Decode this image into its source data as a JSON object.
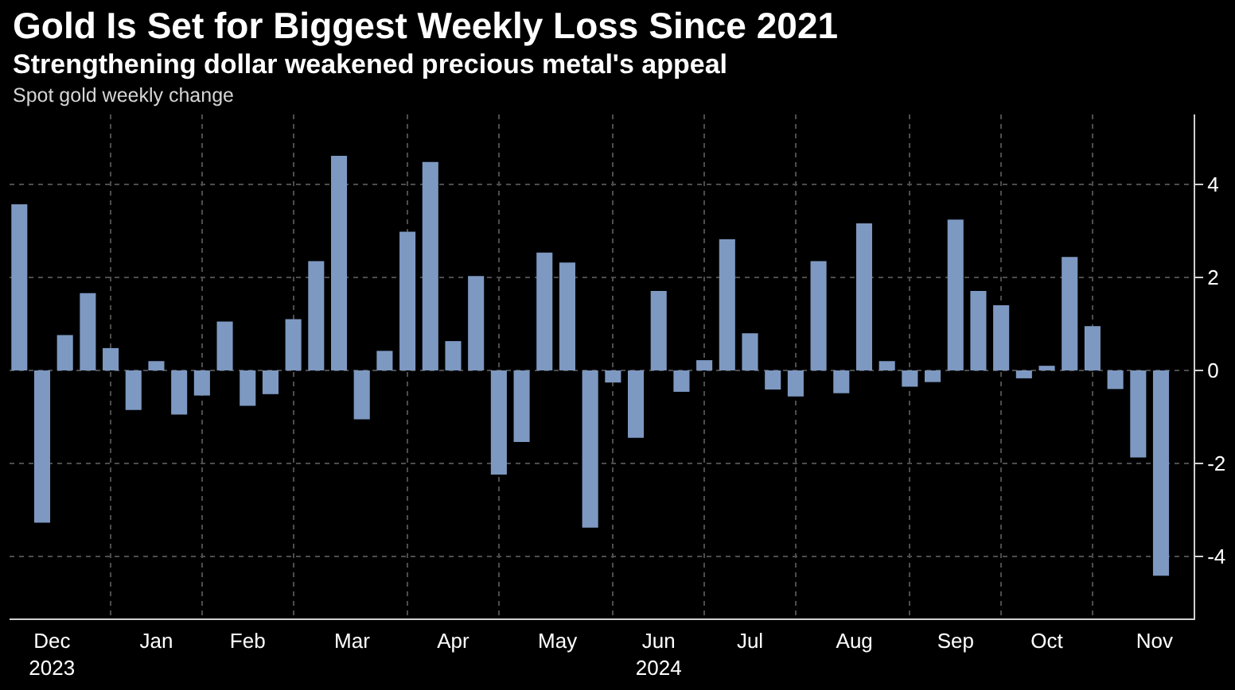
{
  "chart_data": {
    "type": "bar",
    "title": "Gold Is Set for Biggest Weekly Loss Since 2021",
    "subtitle": "Strengthening dollar weakened precious metal's appeal",
    "ylabel": "Spot gold weekly change",
    "x": [
      "2023-12-01",
      "2023-12-08",
      "2023-12-15",
      "2023-12-22",
      "2023-12-29",
      "2024-01-05",
      "2024-01-12",
      "2024-01-19",
      "2024-01-26",
      "2024-02-02",
      "2024-02-09",
      "2024-02-16",
      "2024-02-23",
      "2024-03-01",
      "2024-03-08",
      "2024-03-15",
      "2024-03-22",
      "2024-03-29",
      "2024-04-05",
      "2024-04-12",
      "2024-04-19",
      "2024-04-26",
      "2024-05-03",
      "2024-05-10",
      "2024-05-17",
      "2024-05-24",
      "2024-05-31",
      "2024-06-07",
      "2024-06-14",
      "2024-06-21",
      "2024-06-28",
      "2024-07-05",
      "2024-07-12",
      "2024-07-19",
      "2024-07-26",
      "2024-08-02",
      "2024-08-09",
      "2024-08-16",
      "2024-08-23",
      "2024-08-30",
      "2024-09-06",
      "2024-09-13",
      "2024-09-20",
      "2024-09-27",
      "2024-10-04",
      "2024-10-11",
      "2024-10-18",
      "2024-10-25",
      "2024-11-01",
      "2024-11-08",
      "2024-11-15"
    ],
    "values": [
      3.57,
      -3.27,
      0.76,
      1.66,
      0.48,
      -0.85,
      0.2,
      -0.95,
      -0.54,
      1.05,
      -0.76,
      -0.51,
      1.1,
      2.35,
      4.61,
      -1.05,
      0.42,
      2.98,
      4.48,
      0.63,
      2.03,
      -2.24,
      -1.54,
      2.53,
      2.32,
      -3.38,
      -0.26,
      -1.45,
      1.71,
      -0.46,
      0.22,
      2.82,
      0.8,
      -0.41,
      -0.56,
      2.35,
      -0.49,
      3.16,
      0.2,
      -0.35,
      -0.25,
      3.24,
      1.71,
      1.4,
      -0.17,
      0.1,
      2.44,
      0.95,
      -0.4,
      -1.87,
      -4.41
    ],
    "color": "#7d99c2",
    "xlim": [
      "2023-11-28",
      "2024-11-25"
    ],
    "xticks": [
      {
        "value": "2023-12-11",
        "label": "Dec\n2023"
      },
      {
        "value": "2023-12-29",
        "label": null
      },
      {
        "value": "2024-01-12",
        "label": "Jan"
      },
      {
        "value": "2024-01-26",
        "label": null
      },
      {
        "value": "2024-02-09",
        "label": "Feb"
      },
      {
        "value": "2024-02-23",
        "label": null
      },
      {
        "value": "2024-03-12",
        "label": "Mar"
      },
      {
        "value": "2024-03-29",
        "label": null
      },
      {
        "value": "2024-04-12",
        "label": "Apr"
      },
      {
        "value": "2024-04-26",
        "label": null
      },
      {
        "value": "2024-05-14",
        "label": "May"
      },
      {
        "value": "2024-05-31",
        "label": null
      },
      {
        "value": "2024-06-14",
        "label": "Jun\n2024"
      },
      {
        "value": "2024-06-28",
        "label": null
      },
      {
        "value": "2024-07-12",
        "label": "Jul"
      },
      {
        "value": "2024-07-26",
        "label": null
      },
      {
        "value": "2024-08-13",
        "label": "Aug"
      },
      {
        "value": "2024-08-30",
        "label": null
      },
      {
        "value": "2024-09-13",
        "label": "Sep"
      },
      {
        "value": "2024-09-27",
        "label": null
      },
      {
        "value": "2024-10-11",
        "label": "Oct"
      },
      {
        "value": "2024-10-25",
        "label": null
      },
      {
        "value": "2024-11-13",
        "label": "Nov"
      }
    ],
    "ylim": [
      -5.33,
      5.5
    ],
    "yticks": [
      -4,
      -2,
      0,
      2,
      4
    ],
    "grid": true
  }
}
